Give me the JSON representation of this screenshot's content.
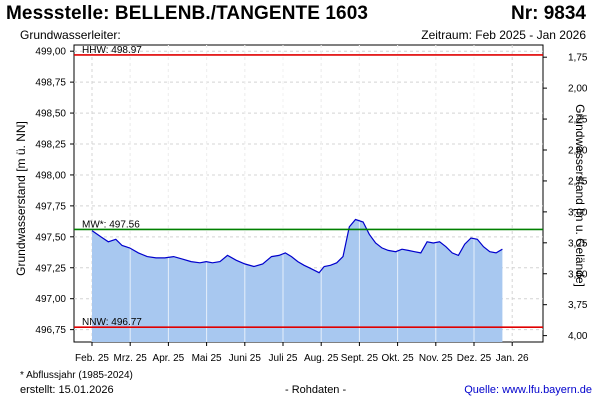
{
  "header": {
    "title": "Messstelle: BELLENB./TANGENTE 1603",
    "number": "Nr: 9834",
    "aquifer": "Grundwasserleiter:",
    "period": "Zeitraum: Feb 2025 - Jan 2026"
  },
  "footer": {
    "note": "* Abflussjahr (1985-2024)",
    "created": "erstellt:  15.01.2026",
    "raw": "- Rohdaten -",
    "source": "Quelle: www.lfu.bayern.de"
  },
  "chart_data": {
    "type": "area",
    "ylabel": "Grundwasserstand [m ü. NN]",
    "y2label": "Grundwasserstand [m u. Gelände]",
    "ylim": [
      496.65,
      499.05
    ],
    "yticks": [
      "499,00",
      "498,75",
      "498,50",
      "498,25",
      "498,00",
      "497,75",
      "497,50",
      "497,25",
      "497,00",
      "496,75"
    ],
    "yticks_values": [
      499.0,
      498.75,
      498.5,
      498.25,
      498.0,
      497.75,
      497.5,
      497.25,
      497.0,
      496.75
    ],
    "y2ticks": [
      "1,75",
      "2,00",
      "2,25",
      "2,50",
      "2,75",
      "3,00",
      "3,25",
      "3,50",
      "3,75",
      "4,00"
    ],
    "xticks": [
      "Feb. 25",
      "Mrz. 25",
      "Apr. 25",
      "Mai 25",
      "Juni 25",
      "Juli 25",
      "Aug. 25",
      "Sept. 25",
      "Okt. 25",
      "Nov. 25",
      "Dez. 25",
      "Jan. 26"
    ],
    "grid": true,
    "reference_lines": [
      {
        "label": "HHW: 498.97",
        "value": 498.97,
        "color": "#e00000"
      },
      {
        "label": "MW*: 497.56",
        "value": 497.56,
        "color": "#008000"
      },
      {
        "label": "NNW: 496.77",
        "value": 496.77,
        "color": "#e00000"
      }
    ],
    "series": [
      {
        "color": "#0000cc",
        "fill": "#a8c8f0",
        "x": [
          "2025-02-01",
          "2025-02-08",
          "2025-02-14",
          "2025-02-20",
          "2025-02-25",
          "2025-03-03",
          "2025-03-10",
          "2025-03-17",
          "2025-03-24",
          "2025-03-31",
          "2025-04-07",
          "2025-04-14",
          "2025-04-21",
          "2025-04-28",
          "2025-05-03",
          "2025-05-08",
          "2025-05-14",
          "2025-05-20",
          "2025-05-27",
          "2025-06-03",
          "2025-06-10",
          "2025-06-17",
          "2025-06-24",
          "2025-06-30",
          "2025-07-05",
          "2025-07-10",
          "2025-07-15",
          "2025-07-20",
          "2025-07-24",
          "2025-07-28",
          "2025-08-01",
          "2025-08-05",
          "2025-08-10",
          "2025-08-15",
          "2025-08-20",
          "2025-08-25",
          "2025-08-30",
          "2025-09-05",
          "2025-09-10",
          "2025-09-15",
          "2025-09-20",
          "2025-09-25",
          "2025-10-01",
          "2025-10-06",
          "2025-10-11",
          "2025-10-16",
          "2025-10-21",
          "2025-10-26",
          "2025-10-31",
          "2025-11-05",
          "2025-11-10",
          "2025-11-15",
          "2025-11-20",
          "2025-11-25",
          "2025-11-30",
          "2025-12-05",
          "2025-12-10",
          "2025-12-15",
          "2025-12-20",
          "2025-12-25"
        ],
        "y": [
          497.55,
          497.5,
          497.46,
          497.48,
          497.43,
          497.41,
          497.37,
          497.34,
          497.33,
          497.33,
          497.34,
          497.32,
          497.3,
          497.29,
          497.3,
          497.29,
          497.3,
          497.35,
          497.31,
          497.28,
          497.26,
          497.28,
          497.34,
          497.35,
          497.37,
          497.34,
          497.3,
          497.27,
          497.25,
          497.23,
          497.21,
          497.26,
          497.27,
          497.29,
          497.34,
          497.58,
          497.64,
          497.62,
          497.52,
          497.45,
          497.41,
          497.39,
          497.38,
          497.4,
          497.39,
          497.38,
          497.37,
          497.46,
          497.45,
          497.46,
          497.42,
          497.37,
          497.35,
          497.44,
          497.49,
          497.48,
          497.42,
          497.38,
          497.37,
          497.4
        ]
      }
    ]
  }
}
